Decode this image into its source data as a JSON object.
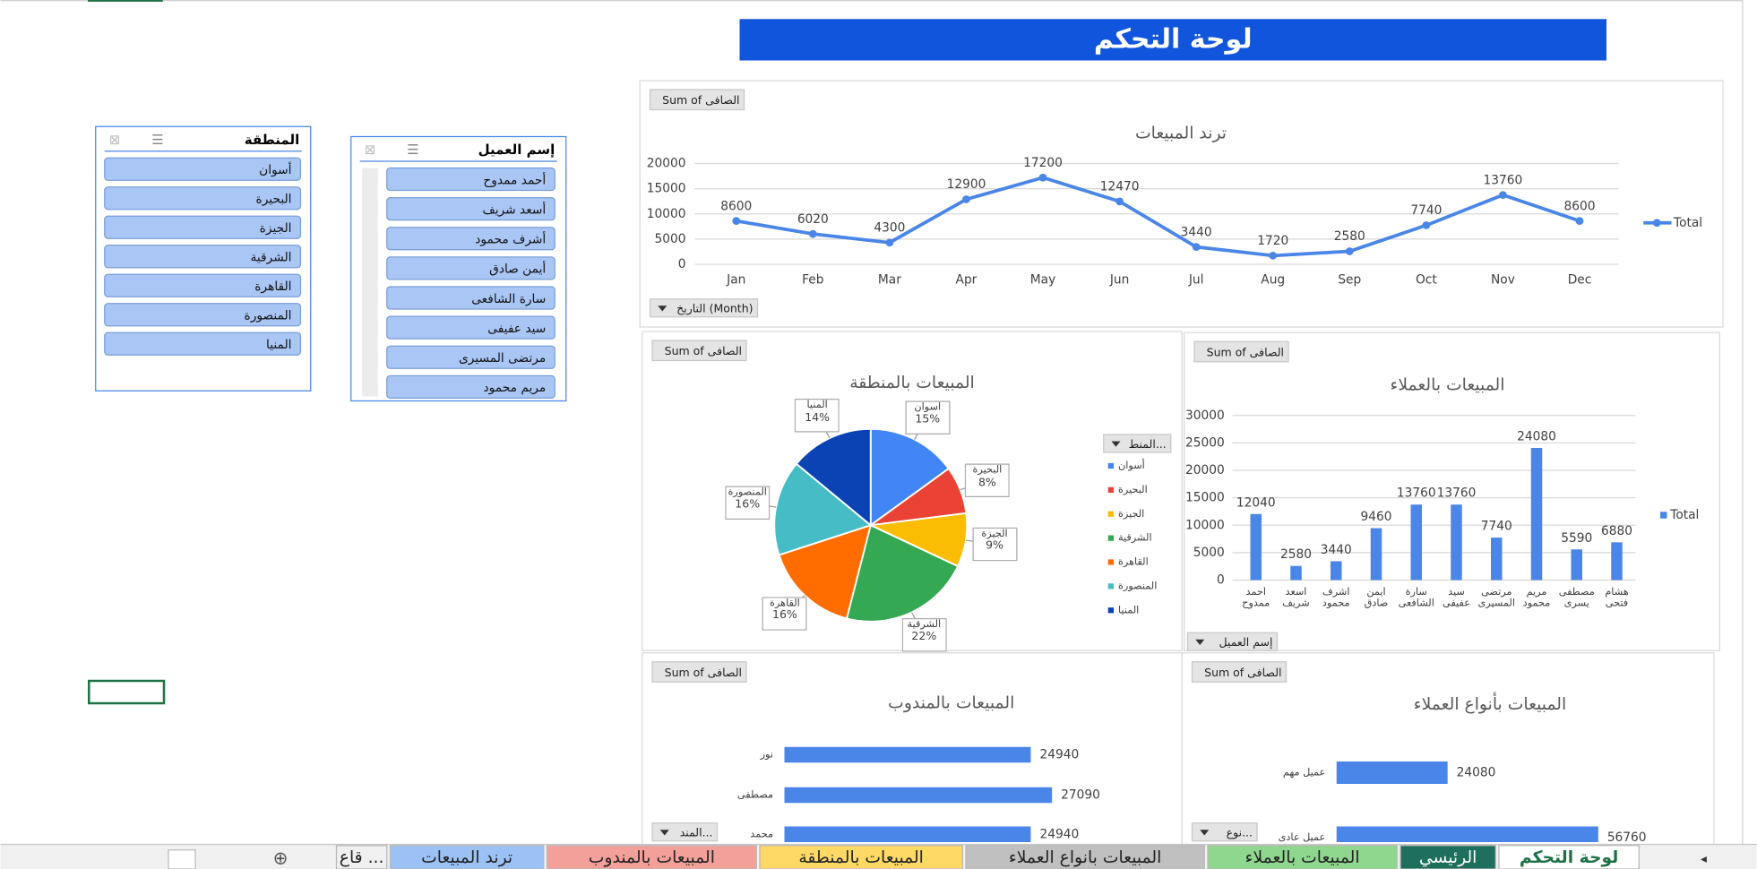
{
  "header": {
    "title": "لوحة التحكم"
  },
  "slicers": [
    {
      "title": "المنطقة",
      "items": [
        "أسوان",
        "البحيرة",
        "الجيزة",
        "الشرقية",
        "القاهرة",
        "المنصورة",
        "المنيا"
      ]
    },
    {
      "title": "إسم العميل",
      "items": [
        "أحمد ممدوح",
        "أسعد شريف",
        "أشرف محمود",
        "أيمن صادق",
        "سارة الشافعى",
        "سيد عفيفى",
        "مرتضى المسيرى",
        "مريم محمود"
      ]
    }
  ],
  "chart_data": [
    {
      "type": "line",
      "title": "ترند المبيعات",
      "value_field": "Sum of الصافى",
      "axis_field": "التاريخ (Month)",
      "categories": [
        "Jan",
        "Feb",
        "Mar",
        "Apr",
        "May",
        "Jun",
        "Jul",
        "Aug",
        "Sep",
        "Oct",
        "Nov",
        "Dec"
      ],
      "series": [
        {
          "name": "Total",
          "color": "#4a86e8",
          "values": [
            8600,
            6020,
            4300,
            12900,
            17200,
            12470,
            3440,
            1720,
            2580,
            7740,
            13760,
            8600
          ]
        }
      ],
      "ylim": [
        0,
        20000
      ],
      "yticks": [
        0,
        5000,
        10000,
        15000,
        20000
      ],
      "grid": true,
      "legend": "right",
      "data_labels": true
    },
    {
      "type": "pie",
      "title": "المبيعات بالمنطقة",
      "value_field": "Sum of الصافى",
      "legend_field": "المنط...",
      "categories": [
        "أسوان",
        "البحيرة",
        "الجيزة",
        "الشرقية",
        "القاهرة",
        "المنصورة",
        "المنيا"
      ],
      "values": [
        15,
        8,
        9,
        22,
        16,
        16,
        14
      ],
      "value_labels": [
        "15%",
        "8%",
        "9%",
        "22%",
        "16%",
        "16%",
        "14%"
      ],
      "colors": [
        "#4285f4",
        "#ea4335",
        "#fbbc04",
        "#34a853",
        "#ff6d01",
        "#46bdc6",
        "#0b43b5"
      ],
      "legend": "right"
    },
    {
      "type": "bar",
      "title": "المبيعات بالعملاء",
      "value_field": "Sum of الصافى",
      "axis_field": "إسم العميل",
      "categories": [
        "أحمد ممدوح",
        "أسعد شريف",
        "أشرف محمود",
        "أيمن صادق",
        "سارة الشافعى",
        "سيد عفيفى",
        "مرتضى المسيرى",
        "مريم محمود",
        "مصطفى يسرى",
        "هشام فتحى"
      ],
      "series": [
        {
          "name": "Total",
          "color": "#4a86e8",
          "values": [
            12040,
            2580,
            3440,
            9460,
            13760,
            13760,
            7740,
            24080,
            5590,
            6880
          ]
        }
      ],
      "ylim": [
        0,
        30000
      ],
      "yticks": [
        0,
        5000,
        10000,
        15000,
        20000,
        25000,
        30000
      ],
      "grid": true,
      "legend": "right",
      "data_labels": true
    },
    {
      "type": "barh",
      "title": "المبيعات بالمندوب",
      "value_field": "Sum of الصافى",
      "axis_field": "المند...",
      "categories": [
        "نور",
        "مصطفى",
        "محمد"
      ],
      "values": [
        24940,
        27090,
        24940
      ],
      "color": "#4a86e8",
      "xlim": [
        0,
        30000
      ],
      "data_labels": true
    },
    {
      "type": "barh",
      "title": "المبيعات بأنواع العملاء",
      "value_field": "Sum of الصافى",
      "axis_field": "نوع...",
      "categories": [
        "عميل مهم",
        "عميل عادى"
      ],
      "values": [
        24080,
        56760
      ],
      "color": "#4a86e8",
      "xlim": [
        0,
        60000
      ],
      "data_labels": true
    }
  ],
  "tabs": [
    {
      "label": "لوحة التحكم",
      "color": "#ffffff"
    },
    {
      "label": "الرئيسي",
      "color": "#1e6f5c"
    },
    {
      "label": "المبيعات بالعملاء",
      "color": "#8fd68f"
    },
    {
      "label": "المبيعات بانواع العملاء",
      "color": "#c0c0c0"
    },
    {
      "label": "المبيعات بالمنطقة",
      "color": "#ffd966"
    },
    {
      "label": "المبيعات بالمندوب",
      "color": "#f4a09a"
    },
    {
      "label": "ترند المبيعات",
      "color": "#9cc2f5"
    },
    {
      "label": "قاع ...",
      "color": "#f0f0f0"
    }
  ]
}
